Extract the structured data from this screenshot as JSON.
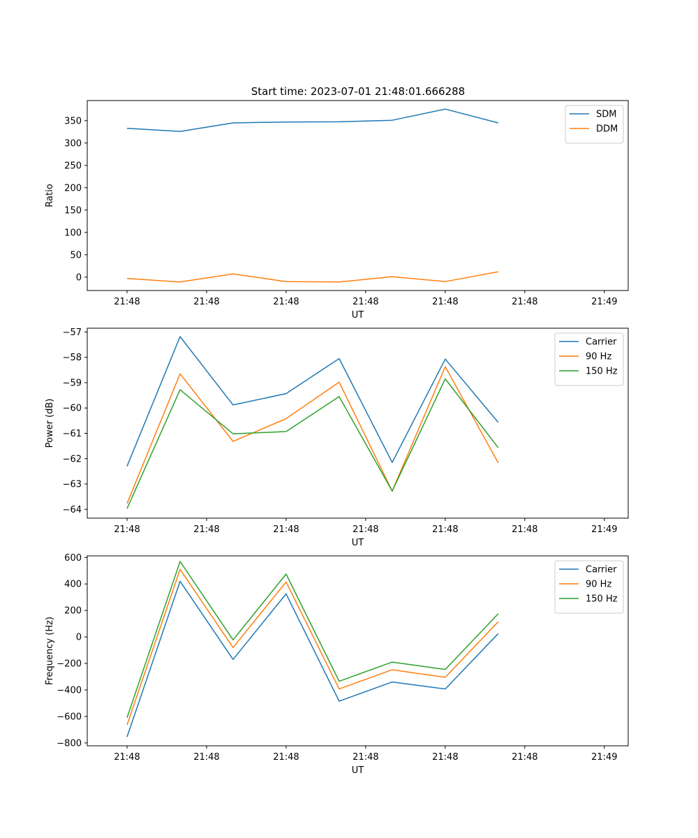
{
  "figure": {
    "title": "Start time: 2023-07-01 21:48:01.666288"
  },
  "colors": {
    "blue": "#1f77b4",
    "orange": "#ff7f0e",
    "green": "#2ca02c",
    "legend_border": "#cccccc"
  },
  "chart_data": [
    {
      "type": "line",
      "title": "Start time: 2023-07-01 21:48:01.666288",
      "xlabel": "UT",
      "ylabel": "Ratio",
      "x_ticks": [
        "21:48",
        "21:48",
        "21:48",
        "21:48",
        "21:48",
        "21:48",
        "21:49"
      ],
      "y_ticks": [
        0,
        50,
        100,
        150,
        200,
        250,
        300,
        350
      ],
      "ylim": [
        -30,
        395
      ],
      "grid": false,
      "legend_position": "top-right",
      "x": [
        1,
        2,
        3,
        4,
        5,
        6,
        7,
        8
      ],
      "xlim": [
        0.25,
        9.45
      ],
      "series": [
        {
          "name": "SDM",
          "color": "#1f77b4",
          "values": [
            333,
            326,
            345,
            347,
            347.5,
            351,
            376,
            345
          ]
        },
        {
          "name": "DDM",
          "color": "#ff7f0e",
          "values": [
            -3,
            -11,
            7,
            -10,
            -11,
            1,
            -10,
            12
          ]
        }
      ]
    },
    {
      "type": "line",
      "title": "",
      "xlabel": "UT",
      "ylabel": "Power (dB)",
      "x_ticks": [
        "21:48",
        "21:48",
        "21:48",
        "21:48",
        "21:48",
        "21:48",
        "21:49"
      ],
      "y_ticks": [
        -64,
        -63,
        -62,
        -61,
        -60,
        -59,
        -58,
        -57
      ],
      "ylim": [
        -64.35,
        -56.85
      ],
      "grid": false,
      "legend_position": "top-right",
      "x": [
        1,
        2,
        3,
        4,
        5,
        6,
        7,
        8
      ],
      "xlim": [
        0.25,
        9.45
      ],
      "series": [
        {
          "name": "Carrier",
          "color": "#1f77b4",
          "values": [
            -62.3,
            -57.18,
            -59.88,
            -59.43,
            -58.05,
            -62.15,
            -58.07,
            -60.57
          ]
        },
        {
          "name": "90 Hz",
          "color": "#ff7f0e",
          "values": [
            -63.77,
            -58.65,
            -61.32,
            -60.42,
            -58.98,
            -63.28,
            -58.37,
            -62.17
          ]
        },
        {
          "name": "150 Hz",
          "color": "#2ca02c",
          "values": [
            -63.97,
            -59.28,
            -61.02,
            -60.93,
            -59.55,
            -63.28,
            -58.85,
            -61.57
          ]
        }
      ]
    },
    {
      "type": "line",
      "title": "",
      "xlabel": "UT",
      "ylabel": "Frequency (Hz)",
      "x_ticks": [
        "21:48",
        "21:48",
        "21:48",
        "21:48",
        "21:48",
        "21:48",
        "21:49"
      ],
      "y_ticks": [
        -800,
        -600,
        -400,
        -200,
        0,
        200,
        400,
        600
      ],
      "ylim": [
        -822,
        612
      ],
      "grid": false,
      "legend_position": "top-right",
      "x": [
        1,
        2,
        3,
        4,
        5,
        6,
        7,
        8
      ],
      "xlim": [
        0.25,
        9.45
      ],
      "series": [
        {
          "name": "Carrier",
          "color": "#1f77b4",
          "values": [
            -755,
            420,
            -170,
            325,
            -485,
            -340,
            -393,
            25
          ]
        },
        {
          "name": "90 Hz",
          "color": "#ff7f0e",
          "values": [
            -665,
            510,
            -80,
            415,
            -393,
            -248,
            -305,
            115
          ]
        },
        {
          "name": "150 Hz",
          "color": "#2ca02c",
          "values": [
            -610,
            570,
            -22,
            475,
            -335,
            -190,
            -245,
            175
          ]
        }
      ]
    }
  ]
}
